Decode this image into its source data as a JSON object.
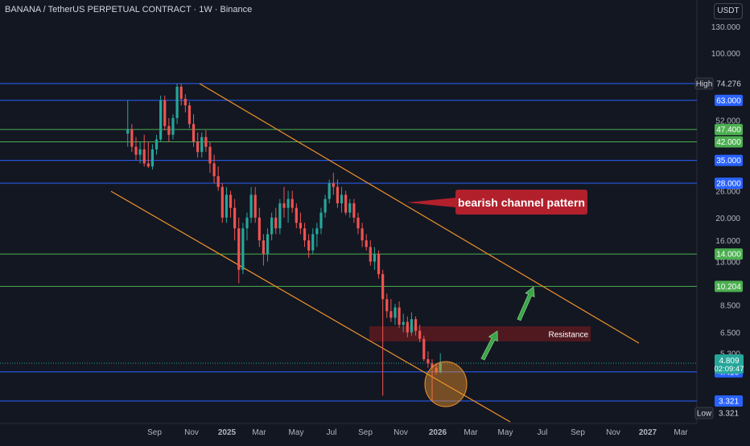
{
  "header": {
    "title": "BANANA / TetherUS PERPETUAL CONTRACT · 1W · Binance",
    "unit_button": "USDT"
  },
  "colors": {
    "background": "#131722",
    "up": "#26a69a",
    "down": "#ef5350",
    "blue_level": "#2962ff",
    "green_level": "#4caf50",
    "channel": "#f0922b",
    "callout": "#b2202c"
  },
  "annotations": {
    "callout": "bearish channel pattern",
    "resistance": "Resistance"
  },
  "price_scale": {
    "ticks": [
      "130.000",
      "100.000",
      "52.000",
      "26.000",
      "20.000",
      "16.000",
      "13.000",
      "8.500",
      "6.500",
      "5.300"
    ],
    "high_tag": "High",
    "low_tag": "Low",
    "current_price": "4.809",
    "countdown": "02:09:47"
  },
  "chart_data": {
    "type": "candlestick",
    "scale": "log",
    "time_labels": [
      "Sep",
      "Nov",
      "2025",
      "Mar",
      "May",
      "Jul",
      "Sep",
      "Nov",
      "2026",
      "Mar",
      "May",
      "Jul",
      "Sep",
      "Nov",
      "2027",
      "Mar"
    ],
    "levels": [
      {
        "price": 74.276,
        "label": "74.276",
        "color": "blue"
      },
      {
        "price": 63.0,
        "label": "63.000",
        "color": "blue"
      },
      {
        "price": 47.4,
        "label": "47.400",
        "color": "green"
      },
      {
        "price": 42.0,
        "label": "42.000",
        "color": "green"
      },
      {
        "price": 35.0,
        "label": "35.000",
        "color": "blue"
      },
      {
        "price": 28.0,
        "label": "28.000",
        "color": "blue"
      },
      {
        "price": 14.0,
        "label": "14.000",
        "color": "green"
      },
      {
        "price": 10.204,
        "label": "10.204",
        "color": "green"
      },
      {
        "price": 4.416,
        "label": "4.416",
        "color": "blue"
      },
      {
        "price": 3.321,
        "label": "3.321",
        "color": "blue"
      }
    ],
    "high": {
      "label": "High",
      "value": "74.276"
    },
    "low": {
      "label": "Low",
      "value": "3.321"
    },
    "candles": [
      {
        "t": "2024-07-29",
        "o": 45.5,
        "h": 63,
        "l": 40,
        "c": 47.5
      },
      {
        "t": "2024-08-05",
        "o": 47.5,
        "h": 50,
        "l": 38,
        "c": 40
      },
      {
        "t": "2024-08-12",
        "o": 40,
        "h": 44,
        "l": 35,
        "c": 37
      },
      {
        "t": "2024-08-19",
        "o": 37,
        "h": 42,
        "l": 34,
        "c": 39
      },
      {
        "t": "2024-08-26",
        "o": 39,
        "h": 45,
        "l": 33,
        "c": 34
      },
      {
        "t": "2024-09-02",
        "o": 34,
        "h": 42,
        "l": 32.5,
        "c": 33
      },
      {
        "t": "2024-09-09",
        "o": 33,
        "h": 41,
        "l": 32,
        "c": 39
      },
      {
        "t": "2024-09-16",
        "o": 39,
        "h": 45,
        "l": 37,
        "c": 43
      },
      {
        "t": "2024-09-23",
        "o": 43,
        "h": 66,
        "l": 42,
        "c": 63
      },
      {
        "t": "2024-09-30",
        "o": 63,
        "h": 66,
        "l": 47,
        "c": 49
      },
      {
        "t": "2024-10-07",
        "o": 49,
        "h": 53,
        "l": 42,
        "c": 45
      },
      {
        "t": "2024-10-14",
        "o": 45,
        "h": 55,
        "l": 43,
        "c": 53
      },
      {
        "t": "2024-10-21",
        "o": 53,
        "h": 74.276,
        "l": 50,
        "c": 72
      },
      {
        "t": "2024-10-28",
        "o": 72,
        "h": 74.276,
        "l": 60,
        "c": 64
      },
      {
        "t": "2024-11-04",
        "o": 64,
        "h": 67,
        "l": 56,
        "c": 60
      },
      {
        "t": "2024-11-11",
        "o": 60,
        "h": 62,
        "l": 48,
        "c": 50
      },
      {
        "t": "2024-11-18",
        "o": 50,
        "h": 55,
        "l": 40,
        "c": 42
      },
      {
        "t": "2024-11-25",
        "o": 42,
        "h": 46,
        "l": 36,
        "c": 38
      },
      {
        "t": "2024-12-02",
        "o": 38,
        "h": 46,
        "l": 36,
        "c": 44
      },
      {
        "t": "2024-12-09",
        "o": 44,
        "h": 47,
        "l": 38,
        "c": 40
      },
      {
        "t": "2024-12-16",
        "o": 40,
        "h": 42,
        "l": 31,
        "c": 34
      },
      {
        "t": "2024-12-23",
        "o": 34,
        "h": 37,
        "l": 28,
        "c": 30
      },
      {
        "t": "2024-12-30",
        "o": 30,
        "h": 33,
        "l": 26,
        "c": 27
      },
      {
        "t": "2025-01-06",
        "o": 27,
        "h": 28,
        "l": 19,
        "c": 20
      },
      {
        "t": "2025-01-13",
        "o": 20,
        "h": 27,
        "l": 19,
        "c": 25
      },
      {
        "t": "2025-01-20",
        "o": 25,
        "h": 26,
        "l": 20,
        "c": 22
      },
      {
        "t": "2025-01-27",
        "o": 22,
        "h": 24,
        "l": 16,
        "c": 18
      },
      {
        "t": "2025-02-03",
        "o": 18,
        "h": 20,
        "l": 10.5,
        "c": 12
      },
      {
        "t": "2025-02-10",
        "o": 12,
        "h": 19,
        "l": 11.5,
        "c": 18
      },
      {
        "t": "2025-02-17",
        "o": 18,
        "h": 21,
        "l": 16,
        "c": 20
      },
      {
        "t": "2025-02-24",
        "o": 20,
        "h": 27,
        "l": 19,
        "c": 25
      },
      {
        "t": "2025-03-03",
        "o": 25,
        "h": 27,
        "l": 19,
        "c": 20
      },
      {
        "t": "2025-03-10",
        "o": 20,
        "h": 22,
        "l": 15,
        "c": 16
      },
      {
        "t": "2025-03-17",
        "o": 16,
        "h": 17,
        "l": 12.5,
        "c": 14
      },
      {
        "t": "2025-03-24",
        "o": 14,
        "h": 18,
        "l": 13,
        "c": 17
      },
      {
        "t": "2025-03-31",
        "o": 17,
        "h": 21,
        "l": 16,
        "c": 20
      },
      {
        "t": "2025-04-07",
        "o": 20,
        "h": 22,
        "l": 17,
        "c": 18
      },
      {
        "t": "2025-04-14",
        "o": 18,
        "h": 24,
        "l": 17,
        "c": 23
      },
      {
        "t": "2025-04-21",
        "o": 23,
        "h": 27,
        "l": 20,
        "c": 22
      },
      {
        "t": "2025-04-28",
        "o": 22,
        "h": 26,
        "l": 19,
        "c": 24
      },
      {
        "t": "2025-05-05",
        "o": 24,
        "h": 26,
        "l": 21,
        "c": 22
      },
      {
        "t": "2025-05-12",
        "o": 22,
        "h": 23,
        "l": 18,
        "c": 19
      },
      {
        "t": "2025-05-19",
        "o": 19,
        "h": 21,
        "l": 17,
        "c": 18
      },
      {
        "t": "2025-05-26",
        "o": 18,
        "h": 19,
        "l": 15,
        "c": 16
      },
      {
        "t": "2025-06-02",
        "o": 16,
        "h": 17,
        "l": 13.5,
        "c": 14.5
      },
      {
        "t": "2025-06-09",
        "o": 14.5,
        "h": 18,
        "l": 14,
        "c": 17
      },
      {
        "t": "2025-06-16",
        "o": 17,
        "h": 19,
        "l": 15,
        "c": 18
      },
      {
        "t": "2025-06-23",
        "o": 18,
        "h": 22,
        "l": 17,
        "c": 21
      },
      {
        "t": "2025-06-30",
        "o": 21,
        "h": 25,
        "l": 20,
        "c": 24
      },
      {
        "t": "2025-07-07",
        "o": 24,
        "h": 29,
        "l": 23,
        "c": 28
      },
      {
        "t": "2025-07-14",
        "o": 28,
        "h": 31,
        "l": 25,
        "c": 27
      },
      {
        "t": "2025-07-21",
        "o": 27,
        "h": 29,
        "l": 22,
        "c": 23
      },
      {
        "t": "2025-07-28",
        "o": 23,
        "h": 27,
        "l": 21,
        "c": 25
      },
      {
        "t": "2025-08-04",
        "o": 25,
        "h": 26,
        "l": 20.5,
        "c": 21
      },
      {
        "t": "2025-08-11",
        "o": 21,
        "h": 24,
        "l": 20,
        "c": 23
      },
      {
        "t": "2025-08-18",
        "o": 23,
        "h": 24,
        "l": 19,
        "c": 20
      },
      {
        "t": "2025-08-25",
        "o": 20,
        "h": 21,
        "l": 17,
        "c": 18
      },
      {
        "t": "2025-09-01",
        "o": 18,
        "h": 19,
        "l": 15,
        "c": 16
      },
      {
        "t": "2025-09-08",
        "o": 16,
        "h": 17,
        "l": 14.5,
        "c": 15
      },
      {
        "t": "2025-09-15",
        "o": 15,
        "h": 16,
        "l": 12.5,
        "c": 13
      },
      {
        "t": "2025-09-22",
        "o": 13,
        "h": 15,
        "l": 12,
        "c": 14
      },
      {
        "t": "2025-09-29",
        "o": 14,
        "h": 14.5,
        "l": 11,
        "c": 11.5
      },
      {
        "t": "2025-10-06",
        "o": 11.5,
        "h": 12,
        "l": 3.5,
        "c": 9
      },
      {
        "t": "2025-10-13",
        "o": 9,
        "h": 9.5,
        "l": 7.5,
        "c": 8
      },
      {
        "t": "2025-10-20",
        "o": 8,
        "h": 9,
        "l": 7.2,
        "c": 7.5
      },
      {
        "t": "2025-10-27",
        "o": 7.5,
        "h": 8.6,
        "l": 7.0,
        "c": 8.3
      },
      {
        "t": "2025-11-03",
        "o": 8.3,
        "h": 8.8,
        "l": 6.8,
        "c": 7.0
      },
      {
        "t": "2025-11-10",
        "o": 7.0,
        "h": 7.8,
        "l": 6.5,
        "c": 7.2
      },
      {
        "t": "2025-11-17",
        "o": 7.2,
        "h": 7.6,
        "l": 6.2,
        "c": 6.5
      },
      {
        "t": "2025-11-24",
        "o": 6.5,
        "h": 7.9,
        "l": 6.3,
        "c": 7.4
      },
      {
        "t": "2025-12-01",
        "o": 7.4,
        "h": 7.6,
        "l": 6.3,
        "c": 6.6
      },
      {
        "t": "2025-12-08",
        "o": 6.6,
        "h": 7.0,
        "l": 5.9,
        "c": 6.1
      },
      {
        "t": "2025-12-15",
        "o": 6.1,
        "h": 6.3,
        "l": 4.9,
        "c": 5.0
      },
      {
        "t": "2025-12-22",
        "o": 5.0,
        "h": 5.4,
        "l": 4.6,
        "c": 4.8
      },
      {
        "t": "2025-12-29",
        "o": 4.8,
        "h": 5.0,
        "l": 3.321,
        "c": 4.6
      },
      {
        "t": "2026-01-05",
        "o": 4.6,
        "h": 4.8,
        "l": 4.3,
        "c": 4.4
      },
      {
        "t": "2026-01-12",
        "o": 4.4,
        "h": 5.3,
        "l": 4.35,
        "c": 4.809
      }
    ]
  }
}
